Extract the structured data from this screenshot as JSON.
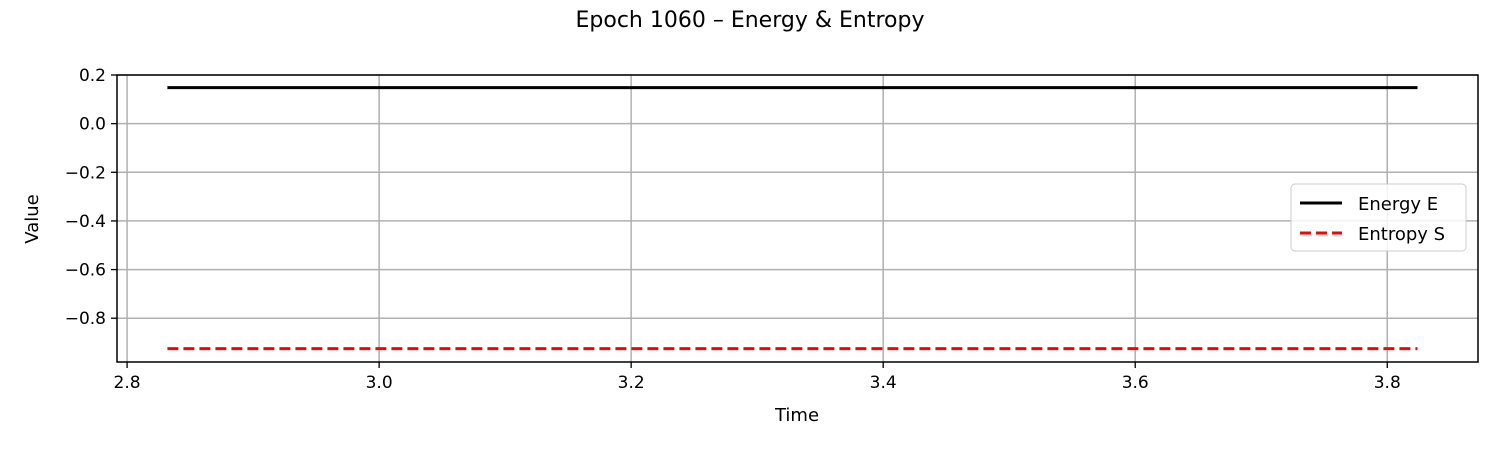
{
  "chart_data": {
    "type": "line",
    "title": "Epoch 1060 – Energy & Entropy",
    "xlabel": "Time",
    "ylabel": "Value",
    "xlim": [
      2.792,
      3.872
    ],
    "ylim": [
      -0.98,
      0.2
    ],
    "xticks": [
      2.8,
      3.0,
      3.2,
      3.4,
      3.6,
      3.8
    ],
    "xtick_labels": [
      "2.8",
      "3.0",
      "3.2",
      "3.4",
      "3.6",
      "3.8"
    ],
    "yticks": [
      0.2,
      0.0,
      -0.2,
      -0.4,
      -0.6,
      -0.8
    ],
    "ytick_labels": [
      "0.2",
      "0.0",
      "−0.2",
      "−0.4",
      "−0.6",
      "−0.8"
    ],
    "grid": true,
    "legend_position": "right",
    "series": [
      {
        "name": "Energy E",
        "color": "#000000",
        "style": "solid",
        "x": [
          2.832,
          3.824
        ],
        "y": [
          0.148,
          0.148
        ]
      },
      {
        "name": "Entropy S",
        "color": "#ff0000",
        "style": "dashed",
        "x": [
          2.832,
          3.824
        ],
        "y": [
          -0.925,
          -0.925
        ]
      }
    ]
  }
}
